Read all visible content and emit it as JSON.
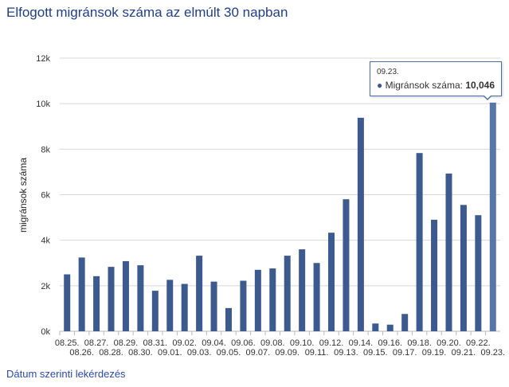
{
  "title": "Elfogott migránsok száma az elmúlt 30 napban",
  "link_label": "Dátum szerinti lekérdezés",
  "tooltip": {
    "date": "09.23.",
    "series_label": "Migránsok száma:",
    "value": "10,046"
  },
  "colors": {
    "bar": "#3c5a8d",
    "bar_highlight": "#5675a8",
    "title": "#1f3f86",
    "grid": "#d8d8d8"
  },
  "chart_data": {
    "type": "bar",
    "title": "Elfogott migránsok száma az elmúlt 30 napban",
    "xlabel": "",
    "ylabel": "migránsok száma",
    "ylim": [
      0,
      12000
    ],
    "yticks": [
      0,
      2000,
      4000,
      6000,
      8000,
      10000,
      12000
    ],
    "ytick_labels": [
      "0k",
      "2k",
      "4k",
      "6k",
      "8k",
      "10k",
      "12k"
    ],
    "grid": true,
    "categories": [
      "08.25.",
      "08.26.",
      "08.27.",
      "08.28.",
      "08.29.",
      "08.30.",
      "08.31.",
      "09.01.",
      "09.02.",
      "09.03.",
      "09.04.",
      "09.05.",
      "09.06.",
      "09.07.",
      "09.08.",
      "09.09.",
      "09.10.",
      "09.11.",
      "09.12.",
      "09.13.",
      "09.14.",
      "09.15.",
      "09.16.",
      "09.17.",
      "09.18.",
      "09.19.",
      "09.20.",
      "09.21.",
      "09.22.",
      "09.23."
    ],
    "series": [
      {
        "name": "Migránsok száma",
        "values": [
          2500,
          3240,
          2420,
          2830,
          3080,
          2900,
          1780,
          2260,
          2080,
          3320,
          2180,
          1020,
          2220,
          2700,
          2760,
          3320,
          3600,
          3000,
          4330,
          5800,
          9380,
          340,
          290,
          760,
          7830,
          4900,
          6930,
          5550,
          5100,
          10046
        ]
      }
    ],
    "highlighted_index": 29
  }
}
